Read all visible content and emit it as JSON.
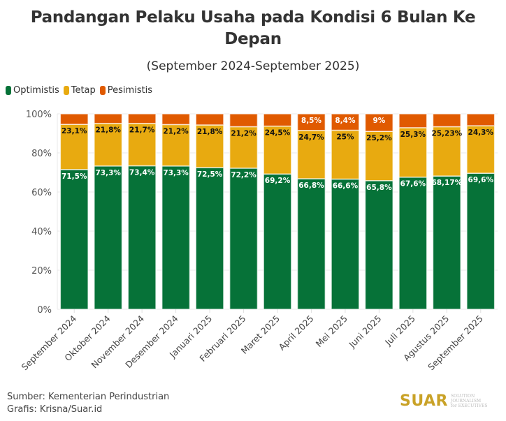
{
  "chart_data": {
    "type": "bar",
    "stacked": true,
    "title": "Pandangan Pelaku Usaha pada Kondisi 6 Bulan Ke Depan",
    "subtitle": "(September 2024-September 2025)",
    "xlabel": "",
    "ylabel": "",
    "ylim": [
      0,
      100
    ],
    "y_ticks": [
      "0%",
      "20%",
      "40%",
      "60%",
      "80%",
      "100%"
    ],
    "grid": true,
    "legend_position": "top-left",
    "categories": [
      "September 2024",
      "Oktober 2024",
      "November 2024",
      "Desember 2024",
      "Januari 2025",
      "Februari 2025",
      "Maret 2025",
      "April 2025",
      "Mei 2025",
      "Juni 2025",
      "Juli 2025",
      "Agustus 2025",
      "September 2025"
    ],
    "series": [
      {
        "name": "Optimistis",
        "color": "#067238",
        "values": [
          71.5,
          73.3,
          73.4,
          73.3,
          72.5,
          72.2,
          69.2,
          66.8,
          66.6,
          65.8,
          67.6,
          68.17,
          69.6
        ],
        "labels": [
          "71,5%",
          "73,3%",
          "73,4%",
          "73,3%",
          "72,5%",
          "72,2%",
          "69,2%",
          "66,8%",
          "66,6%",
          "65,8%",
          "67,6%",
          "68,17%",
          "69,6%"
        ]
      },
      {
        "name": "Tetap",
        "color": "#e8aa10",
        "values": [
          23.1,
          21.8,
          21.7,
          21.2,
          21.8,
          21.2,
          24.5,
          24.7,
          25,
          25.2,
          25.3,
          25.23,
          24.3
        ],
        "labels": [
          "23,1%",
          "21,8%",
          "21,7%",
          "21,2%",
          "21,8%",
          "21,2%",
          "24,5%",
          "24,7%",
          "25%",
          "25,2%",
          "25,3%",
          "25,23%",
          "24,3%"
        ]
      },
      {
        "name": "Pesimistis",
        "color": "#e05a00",
        "values": [
          5.4,
          4.9,
          4.9,
          5.5,
          5.7,
          6.6,
          6.3,
          8.5,
          8.4,
          9,
          7.1,
          6.6,
          6.1
        ],
        "labels": [
          "",
          "",
          "",
          "",
          "",
          "",
          "",
          "8,5%",
          "8,4%",
          "9%",
          "",
          "",
          ""
        ]
      }
    ]
  },
  "footer": {
    "source": "Sumber: Kementerian Perindustrian",
    "credit": "Grafis: Krisna/Suar.id"
  },
  "logo": {
    "word": "SUAR",
    "tagline_1": "SOLUTION JOURNALISM",
    "tagline_2": "for EXECUTIVES"
  }
}
